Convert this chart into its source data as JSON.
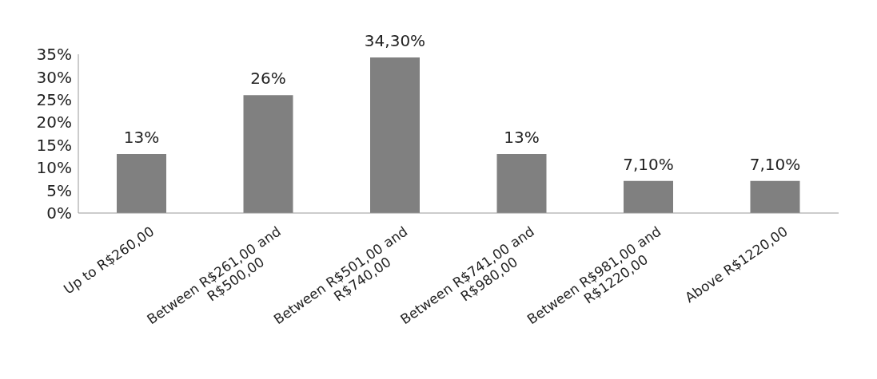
{
  "chart_data": {
    "type": "bar",
    "categories": [
      "Up to R$260,00",
      "Between R$261,00 and R$500,00",
      "Between R$501,00 and R$740,00",
      "Between R$741,00 and R$980,00",
      "Between R$981,00 and R$1220,00",
      "Above R$1220,00"
    ],
    "values": [
      13,
      26,
      34.3,
      13,
      7.1,
      7.1
    ],
    "value_labels": [
      "13%",
      "26%",
      "34,30%",
      "13%",
      "7,10%",
      "7,10%"
    ],
    "color": "#808080",
    "ylim": [
      0,
      35
    ],
    "yticks": [
      {
        "value": 0,
        "label": "0%"
      },
      {
        "value": 5,
        "label": "5%"
      },
      {
        "value": 10,
        "label": "10%"
      },
      {
        "value": 15,
        "label": "15%"
      },
      {
        "value": 20,
        "label": "20%"
      },
      {
        "value": 25,
        "label": "25%"
      },
      {
        "value": 30,
        "label": "30%"
      },
      {
        "value": 35,
        "label": "35%"
      }
    ],
    "grid": false,
    "legend": false
  }
}
